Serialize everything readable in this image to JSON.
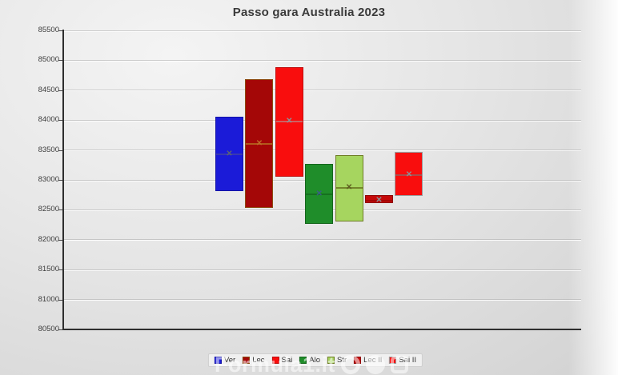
{
  "watermark": {
    "text": "Formula1.it"
  },
  "chart_data": {
    "type": "bar",
    "subtype": "floating-range-box",
    "title": "Passo gara Australia 2023",
    "xlabel": "",
    "ylabel": "",
    "ylim": [
      80500,
      85500
    ],
    "ytick_step": 500,
    "yticks": [
      80500,
      81000,
      81500,
      82000,
      82500,
      83000,
      83500,
      84000,
      84500,
      85000,
      85500
    ],
    "grid": true,
    "legend_position": "bottom",
    "legend_labels": [
      "Ver",
      "Lec",
      "Sai",
      "Alo",
      "Str",
      "Lec II",
      "Sai II"
    ],
    "series": [
      {
        "name": "Ver",
        "low": 82810,
        "high": 84060,
        "mean": 83440,
        "fill": "#1b1bd8",
        "border": "#1212a6",
        "accent": "#3c3cae",
        "marker": "#5a6276"
      },
      {
        "name": "Lec",
        "low": 82530,
        "high": 84690,
        "mean": 83610,
        "fill": "#a40707",
        "border": "#8c4a10",
        "accent": "#b4631e",
        "marker": "#c06a28"
      },
      {
        "name": "Sai",
        "low": 83050,
        "high": 84890,
        "mean": 83990,
        "fill": "#f90d0d",
        "border": "#bf0f0f",
        "accent": "#c96a6a",
        "marker": "#8f8f95"
      },
      {
        "name": "Alo",
        "low": 82270,
        "high": 83270,
        "mean": 82770,
        "fill": "#1f8d2a",
        "border": "#14661c",
        "accent": "#156e1e",
        "marker": "#3a5d88"
      },
      {
        "name": "Str",
        "low": 82300,
        "high": 83420,
        "mean": 82880,
        "fill": "#a6d55f",
        "border": "#6f7d26",
        "accent": "#6f7d26",
        "marker": "#5d5d20"
      },
      {
        "name": "Lec II",
        "low": 82610,
        "high": 82740,
        "mean": 82670,
        "fill": "#c50909",
        "border": "#8f0606",
        "accent": "#9e0707",
        "marker": "#8f8f95"
      },
      {
        "name": "Sai II",
        "low": 82730,
        "high": 83470,
        "mean": 83100,
        "fill": "#f90d0d",
        "border": "#9b9b9b",
        "accent": "#a05555",
        "marker": "#8f8f95"
      }
    ]
  }
}
